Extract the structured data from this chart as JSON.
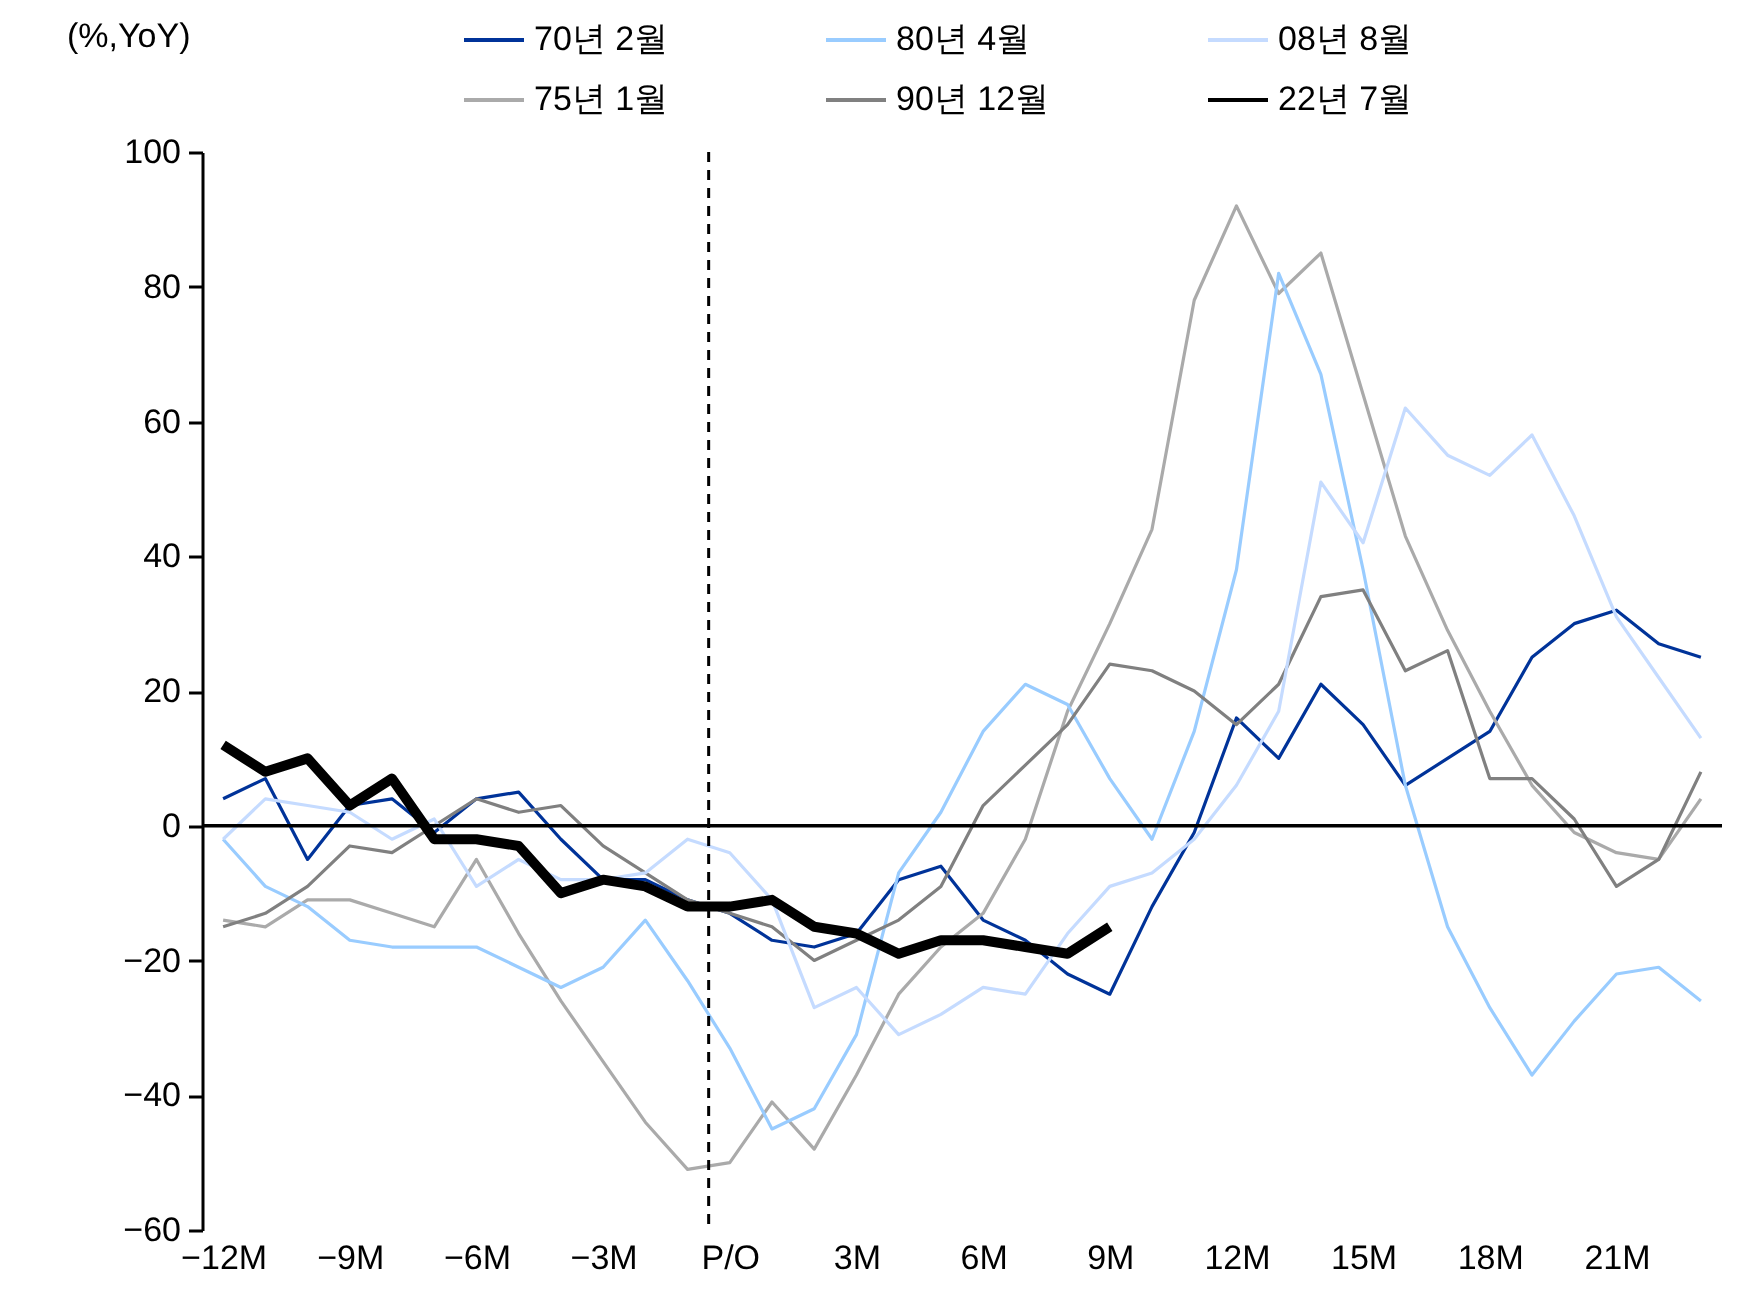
{
  "chart_data": {
    "type": "line",
    "ylabel": "(%,YoY)",
    "x": [
      -12,
      -11,
      -10,
      -9,
      -8,
      -7,
      -6,
      -5,
      -4,
      -3,
      -2,
      -1,
      0,
      1,
      2,
      3,
      4,
      5,
      6,
      7,
      8,
      9,
      10,
      11,
      12,
      13,
      14,
      15,
      16,
      17,
      18,
      19,
      20,
      21,
      22,
      23
    ],
    "series": [
      {
        "name": "70년  2월",
        "color": "#003399",
        "values": [
          4,
          7,
          -5,
          3,
          4,
          -1,
          4,
          5,
          -2,
          -8,
          -8,
          -11,
          -13,
          -17,
          -18,
          -16,
          -8,
          -6,
          -14,
          -17,
          -22,
          -25,
          -12,
          -1,
          16,
          10,
          21,
          15,
          6,
          10,
          14,
          25,
          30,
          32,
          27,
          25
        ]
      },
      {
        "name": "75년  1월",
        "color": "#aaaaaa",
        "values": [
          -14,
          -15,
          -11,
          -11,
          -13,
          -15,
          -5,
          -16,
          -26,
          -35,
          -44,
          -51,
          -50,
          -41,
          -48,
          -37,
          -25,
          -18,
          -13,
          -2,
          17,
          30,
          44,
          78,
          92,
          79,
          85,
          64,
          43,
          29,
          17,
          6,
          -1,
          -4,
          -5,
          4
        ]
      },
      {
        "name": "80년  4월",
        "color": "#99ccff",
        "values": [
          -2,
          -9,
          -12,
          -17,
          -18,
          -18,
          -18,
          -21,
          -24,
          -21,
          -14,
          -23,
          -33,
          -45,
          -42,
          -31,
          -7,
          2,
          14,
          21,
          18,
          7,
          -2,
          14,
          38,
          82,
          67,
          38,
          6,
          -15,
          -27,
          -37,
          -29,
          -22,
          -21,
          -26
        ]
      },
      {
        "name": "90년  12월",
        "color": "#808080",
        "values": [
          -15,
          -13,
          -9,
          -3,
          -4,
          0,
          4,
          2,
          3,
          -3,
          -7,
          -11,
          -13,
          -15,
          -20,
          -17,
          -14,
          -9,
          3,
          9,
          15,
          24,
          23,
          20,
          15,
          21,
          34,
          35,
          23,
          26,
          7,
          7,
          1,
          -9,
          -5,
          8
        ]
      },
      {
        "name": "08년  8월",
        "color": "#c5dbff",
        "values": [
          -2,
          4,
          3,
          2,
          -2,
          1,
          -9,
          -5,
          -8,
          -8,
          -7,
          -2,
          -4,
          -11,
          -27,
          -24,
          -31,
          -28,
          -24,
          -25,
          -16,
          -9,
          -7,
          -2,
          6,
          17,
          51,
          42,
          62,
          55,
          52,
          58,
          46,
          31,
          22,
          13
        ]
      },
      {
        "name": "22년  7월",
        "color": "#000000",
        "values": [
          12,
          8,
          10,
          3,
          7,
          -2,
          -2,
          -3,
          -10,
          -8,
          -9,
          -12,
          -12,
          -11,
          -15,
          -16,
          -19,
          -17,
          -17,
          -18,
          -19,
          -15,
          null,
          null,
          null,
          null,
          null,
          null,
          null,
          null,
          null,
          null,
          null,
          null,
          null,
          null
        ]
      }
    ],
    "xlim": [
      -12.5,
      23.5
    ],
    "xticks": [
      {
        "value": -12,
        "label": "−12M"
      },
      {
        "value": -9,
        "label": "−9M"
      },
      {
        "value": -6,
        "label": "−6M"
      },
      {
        "value": -3,
        "label": "−3M"
      },
      {
        "value": 0,
        "label": "P/O"
      },
      {
        "value": 3,
        "label": "3M"
      },
      {
        "value": 6,
        "label": "6M"
      },
      {
        "value": 9,
        "label": "9M"
      },
      {
        "value": 12,
        "label": "12M"
      },
      {
        "value": 15,
        "label": "15M"
      },
      {
        "value": 18,
        "label": "18M"
      },
      {
        "value": 21,
        "label": "21M"
      }
    ],
    "ylim": [
      -60,
      100
    ],
    "yticks": [
      {
        "value": -60,
        "label": "−60"
      },
      {
        "value": -40,
        "label": "−40"
      },
      {
        "value": -20,
        "label": "−20"
      },
      0,
      20,
      40,
      60,
      80,
      100
    ],
    "ref_lines": [
      {
        "axis": "x",
        "value": -0.5,
        "color": "#000000",
        "line_style": "dashed"
      },
      {
        "axis": "y",
        "value": 0,
        "color": "#000000",
        "line_style": "solid"
      }
    ],
    "legend": "top",
    "grid": false
  }
}
